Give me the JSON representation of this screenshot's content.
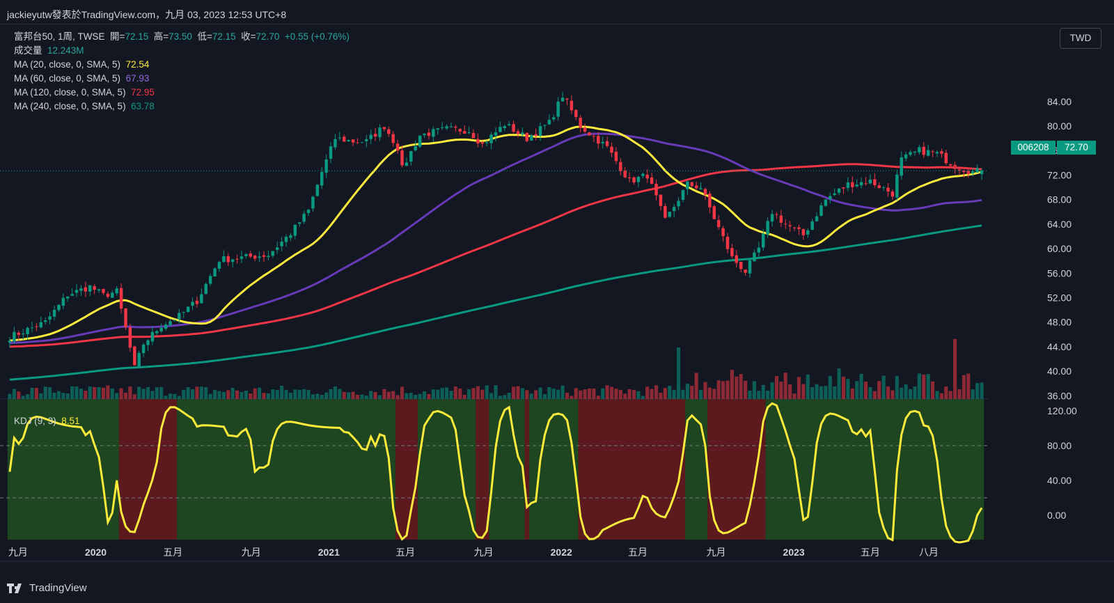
{
  "attribution": "jackieyutw發表於TradingView.com，九月 03, 2023 12:53 UTC+8",
  "footer": {
    "brand": "TradingView"
  },
  "currency_button": "TWD",
  "legend": {
    "symbol": "富邦台50, 1周, TWSE",
    "open_label": "開=",
    "open": "72.15",
    "high_label": "高=",
    "high": "73.50",
    "low_label": "低=",
    "low": "72.15",
    "close_label": "收=",
    "close": "72.70",
    "change": "+0.55 (+0.76%)",
    "volume_label": "成交量",
    "volume": "12.243M",
    "ma20_label": "MA (20, close, 0, SMA, 5)",
    "ma20": "72.54",
    "ma60_label": "MA (60, close, 0, SMA, 5)",
    "ma60": "67.93",
    "ma120_label": "MA (120, close, 0, SMA, 5)",
    "ma120": "72.95",
    "ma240_label": "MA (240, close, 0, SMA, 5)",
    "ma240": "63.78",
    "kdj_label": "KDJ (9, 3)",
    "kdj": "8.51"
  },
  "price_tags": {
    "symbol": "006208",
    "last": "72.70"
  },
  "colors": {
    "up": "#089981",
    "down": "#f23645",
    "ma20": "#ffeb3b",
    "ma60": "#673ab7",
    "ma120": "#f23645",
    "ma240": "#089981",
    "kdj": "#ffeb3b",
    "kdj_bull_bg": "#1e4620",
    "kdj_bear_bg": "#5c1a1e"
  },
  "chart_data": [
    {
      "type": "candlestick",
      "interval": "weekly",
      "y_ticks": [
        "36.00",
        "40.00",
        "44.00",
        "48.00",
        "52.00",
        "56.00",
        "60.00",
        "64.00",
        "68.00",
        "72.00",
        "76.00",
        "80.00",
        "84.00"
      ],
      "ylim": [
        34,
        88
      ],
      "x_tick_labels": [
        "九月",
        "2020",
        "五月",
        "九月",
        "2021",
        "五月",
        "九月",
        "2022",
        "五月",
        "九月",
        "2023",
        "五月",
        "八月"
      ],
      "x_tick_dates": [
        "2019-09",
        "2020-01",
        "2020-05",
        "2020-09",
        "2021-01",
        "2021-05",
        "2021-09",
        "2022-01",
        "2022-05",
        "2022-09",
        "2023-01",
        "2023-05",
        "2023-08"
      ],
      "price_path": [
        [
          0,
          45.6
        ],
        [
          8,
          48
        ],
        [
          13,
          52.5
        ],
        [
          18,
          53.8
        ],
        [
          21,
          52.4
        ],
        [
          24,
          53
        ],
        [
          26,
          47
        ],
        [
          28,
          40.5
        ],
        [
          30,
          44.5
        ],
        [
          34,
          47.5
        ],
        [
          38,
          49
        ],
        [
          42,
          51.5
        ],
        [
          47,
          58.2
        ],
        [
          53,
          58.6
        ],
        [
          58,
          59
        ],
        [
          63,
          62.5
        ],
        [
          67,
          66.2
        ],
        [
          70,
          72.5
        ],
        [
          73,
          78
        ],
        [
          77,
          77.5
        ],
        [
          80,
          77.5
        ],
        [
          84,
          80
        ],
        [
          87,
          76.5
        ],
        [
          88,
          73
        ],
        [
          92,
          78.5
        ],
        [
          98,
          79.5
        ],
        [
          103,
          79.3
        ],
        [
          106,
          77
        ],
        [
          111,
          80.3
        ],
        [
          116,
          78
        ],
        [
          121,
          80.5
        ],
        [
          124,
          85
        ],
        [
          128,
          80
        ],
        [
          134,
          76.5
        ],
        [
          139,
          71
        ],
        [
          143,
          72
        ],
        [
          147,
          64.5
        ],
        [
          152,
          70.5
        ],
        [
          155,
          70
        ],
        [
          158,
          65
        ],
        [
          162,
          58.5
        ],
        [
          165,
          56.3
        ],
        [
          168,
          60
        ],
        [
          171,
          66
        ],
        [
          174,
          64
        ],
        [
          178,
          62.2
        ],
        [
          183,
          68
        ],
        [
          188,
          70.5
        ],
        [
          193,
          71
        ],
        [
          198,
          69
        ],
        [
          200,
          74.5
        ],
        [
          204,
          76
        ],
        [
          208,
          75.5
        ],
        [
          212,
          73.5
        ],
        [
          216,
          72.5
        ],
        [
          218,
          72.7
        ]
      ],
      "last_close": 72.7,
      "series": [
        {
          "name": "MA (20, close, 0, SMA, 5)",
          "period": 20,
          "last": 72.54
        },
        {
          "name": "MA (60, close, 0, SMA, 5)",
          "period": 60,
          "last": 67.93
        },
        {
          "name": "MA (120, close, 0, SMA, 5)",
          "period": 120,
          "last": 72.95
        },
        {
          "name": "MA (240, close, 0, SMA, 5)",
          "period": 240,
          "last": 63.78
        }
      ],
      "volume": {
        "name": "成交量",
        "last": "12.243M"
      }
    },
    {
      "type": "line",
      "name": "KDJ (9, 3)",
      "y_ticks": [
        "0.00",
        "40.00",
        "80.00",
        "120.00"
      ],
      "ylim": [
        -30,
        120
      ],
      "guide_levels": [
        20,
        80
      ],
      "last": 8.51
    }
  ]
}
